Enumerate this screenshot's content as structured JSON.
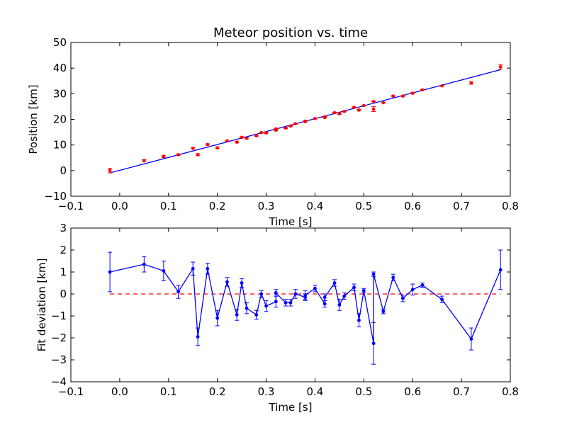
{
  "chart_data": [
    {
      "type": "scatter",
      "title": "Meteor position vs. time",
      "xlabel": "Time [s]",
      "ylabel": "Position [km]",
      "xlim": [
        -0.1,
        0.8
      ],
      "ylim": [
        -10,
        50
      ],
      "xticks": [
        "−0.1",
        "0.0",
        "0.1",
        "0.2",
        "0.3",
        "0.4",
        "0.5",
        "0.6",
        "0.7",
        "0.8"
      ],
      "yticks": [
        "−10",
        "0",
        "10",
        "20",
        "30",
        "40",
        "50"
      ],
      "xtick_values": [
        -0.1,
        0,
        0.1,
        0.2,
        0.3,
        0.4,
        0.5,
        0.6,
        0.7,
        0.8
      ],
      "ytick_values": [
        -10,
        0,
        10,
        20,
        30,
        40,
        50
      ],
      "grid": false,
      "marker_color": "#ff0000",
      "fit_color": "#0000ff",
      "fit_line": {
        "x": [
          -0.02,
          0.78
        ],
        "y": [
          -0.9,
          39.4
        ]
      },
      "series": [
        {
          "x": [
            -0.02,
            0.05,
            0.09,
            0.12,
            0.15,
            0.16,
            0.18,
            0.2,
            0.22,
            0.24,
            0.25,
            0.26,
            0.28,
            0.29,
            0.3,
            0.32,
            0.32,
            0.34,
            0.35,
            0.36,
            0.38,
            0.38,
            0.4,
            0.42,
            0.42,
            0.44,
            0.45,
            0.46,
            0.48,
            0.49,
            0.5,
            0.52,
            0.52,
            0.54,
            0.56,
            0.58,
            0.6,
            0.62,
            0.66,
            0.72,
            0.78
          ],
          "y": [
            0.0,
            3.9,
            5.5,
            6.2,
            8.7,
            6.2,
            10.2,
            8.9,
            11.6,
            11.1,
            13.0,
            12.6,
            13.6,
            14.8,
            14.7,
            15.8,
            16.3,
            16.6,
            17.4,
            18.3,
            19.1,
            19.3,
            20.3,
            20.7,
            21.0,
            22.6,
            22.2,
            23.1,
            24.7,
            23.6,
            25.4,
            24.0,
            27.0,
            26.5,
            29.1,
            29.1,
            30.2,
            31.5,
            33.1,
            34.2,
            40.5
          ],
          "yerr": [
            0.9,
            0.35,
            0.45,
            0.3,
            0.3,
            0.4,
            0.25,
            0.35,
            0.2,
            0.25,
            0.2,
            0.25,
            0.2,
            0.15,
            0.25,
            0.25,
            0.15,
            0.15,
            0.15,
            0.2,
            0.15,
            0.2,
            0.15,
            0.15,
            0.15,
            0.15,
            0.25,
            0.15,
            0.15,
            0.3,
            0.1,
            0.95,
            0.1,
            0.1,
            0.15,
            0.15,
            0.25,
            0.1,
            0.15,
            0.5,
            0.9
          ]
        }
      ]
    },
    {
      "type": "line",
      "xlabel": "Time [s]",
      "ylabel": "Fit deviation [km]",
      "xlim": [
        -0.1,
        0.8
      ],
      "ylim": [
        -4,
        3
      ],
      "xticks": [
        "−0.1",
        "0.0",
        "0.1",
        "0.2",
        "0.3",
        "0.4",
        "0.5",
        "0.6",
        "0.7",
        "0.8"
      ],
      "yticks": [
        "−4",
        "−3",
        "−2",
        "−1",
        "0",
        "1",
        "2",
        "3"
      ],
      "xtick_values": [
        -0.1,
        0,
        0.1,
        0.2,
        0.3,
        0.4,
        0.5,
        0.6,
        0.7,
        0.8
      ],
      "ytick_values": [
        -4,
        -3,
        -2,
        -1,
        0,
        1,
        2,
        3
      ],
      "grid": false,
      "line_color": "#0000ff",
      "zero_line": {
        "y": 0,
        "color": "#ff0000",
        "style": "dashed",
        "x": [
          -0.02,
          0.78
        ]
      },
      "series": [
        {
          "x": [
            -0.02,
            0.05,
            0.09,
            0.12,
            0.15,
            0.16,
            0.18,
            0.2,
            0.22,
            0.24,
            0.25,
            0.26,
            0.28,
            0.29,
            0.3,
            0.32,
            0.32,
            0.34,
            0.35,
            0.36,
            0.38,
            0.38,
            0.4,
            0.42,
            0.42,
            0.44,
            0.45,
            0.46,
            0.48,
            0.49,
            0.5,
            0.52,
            0.52,
            0.54,
            0.56,
            0.58,
            0.6,
            0.62,
            0.66,
            0.72,
            0.78
          ],
          "y": [
            1.0,
            1.35,
            1.05,
            0.1,
            1.15,
            -1.95,
            1.15,
            -1.1,
            0.55,
            -0.95,
            0.5,
            -0.65,
            -0.95,
            0.0,
            -0.55,
            -0.35,
            0.05,
            -0.4,
            -0.4,
            0.0,
            -0.15,
            -0.05,
            0.25,
            -0.45,
            -0.15,
            0.5,
            -0.5,
            -0.1,
            0.3,
            -1.2,
            0.15,
            -2.25,
            0.9,
            -0.8,
            0.75,
            -0.2,
            0.2,
            0.4,
            -0.25,
            -2.05,
            1.1
          ],
          "yerr": [
            0.9,
            0.35,
            0.45,
            0.3,
            0.3,
            0.4,
            0.25,
            0.35,
            0.2,
            0.25,
            0.2,
            0.25,
            0.2,
            0.15,
            0.25,
            0.25,
            0.15,
            0.15,
            0.15,
            0.2,
            0.15,
            0.2,
            0.15,
            0.15,
            0.15,
            0.15,
            0.25,
            0.15,
            0.15,
            0.3,
            0.1,
            0.95,
            0.1,
            0.1,
            0.15,
            0.15,
            0.25,
            0.1,
            0.15,
            0.5,
            0.9
          ]
        }
      ]
    }
  ]
}
